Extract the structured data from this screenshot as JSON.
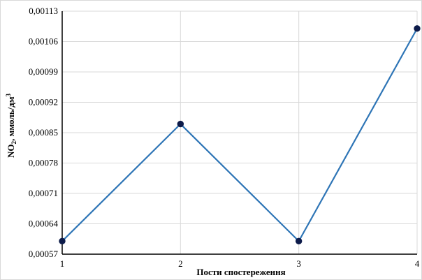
{
  "chart_data": {
    "type": "line",
    "title": "",
    "xlabel": "Пости спостереження",
    "ylabel_parts": {
      "base": "NO",
      "sub": "2",
      "mid": ", ммоль/дм",
      "sup": "3"
    },
    "categories": [
      "1",
      "2",
      "3",
      "4"
    ],
    "values": [
      0.0006,
      0.00087,
      0.0006,
      0.00109
    ],
    "y_ticks": [
      "0,00057",
      "0,00064",
      "0,00071",
      "0,00078",
      "0,00085",
      "0,00092",
      "0,00099",
      "0,00106",
      "0,00113"
    ],
    "ylim": [
      0.00057,
      0.00113
    ],
    "grid": true,
    "colors": {
      "line": "#2e75b6",
      "marker": "#0d1b4a",
      "grid": "#d9d9d9"
    }
  }
}
